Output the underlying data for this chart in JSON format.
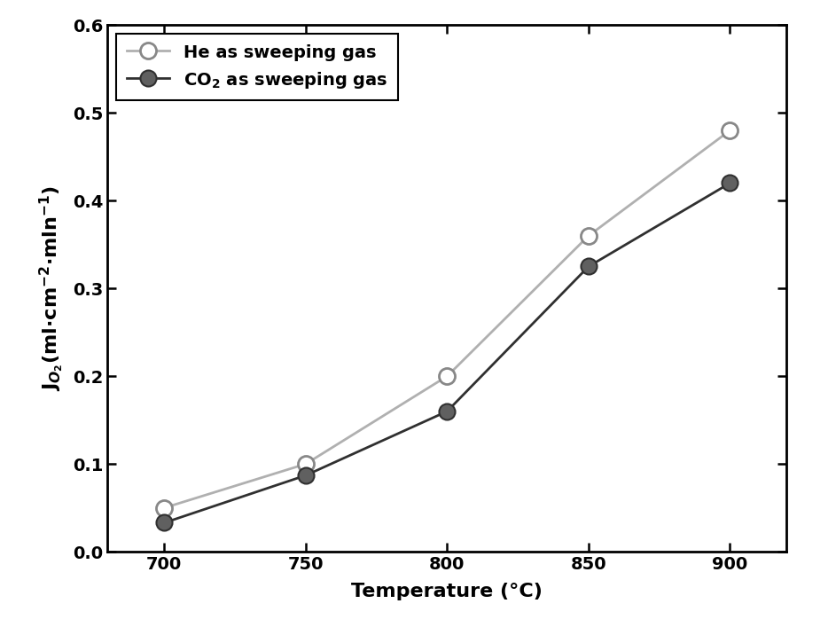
{
  "temperature": [
    700,
    750,
    800,
    850,
    900
  ],
  "he_values": [
    0.05,
    0.1,
    0.2,
    0.36,
    0.48
  ],
  "co2_values": [
    0.033,
    0.087,
    0.16,
    0.325,
    0.42
  ],
  "he_label": "He as sweeping gas",
  "co2_label": "CO$_2$ as sweeping gas",
  "xlabel": "Temperature (°C)",
  "ylabel": "J$_{O_2}$(ml·cm$^{-2}$·mln$^{-1}$)",
  "ylim": [
    0.0,
    0.6
  ],
  "xlim": [
    680,
    920
  ],
  "xticks": [
    700,
    750,
    800,
    850,
    900
  ],
  "yticks": [
    0.0,
    0.1,
    0.2,
    0.3,
    0.4,
    0.5,
    0.6
  ],
  "he_line_color": "#b0b0b0",
  "co2_line_color": "#303030",
  "he_marker_face": "white",
  "he_marker_edge": "#888888",
  "co2_marker_face": "#606060",
  "co2_marker_edge": "#303030",
  "background_color": "#ffffff",
  "legend_fontsize": 14,
  "axis_label_fontsize": 16,
  "tick_fontsize": 14,
  "marker_size": 13,
  "linewidth": 2.0,
  "spine_linewidth": 2.0
}
